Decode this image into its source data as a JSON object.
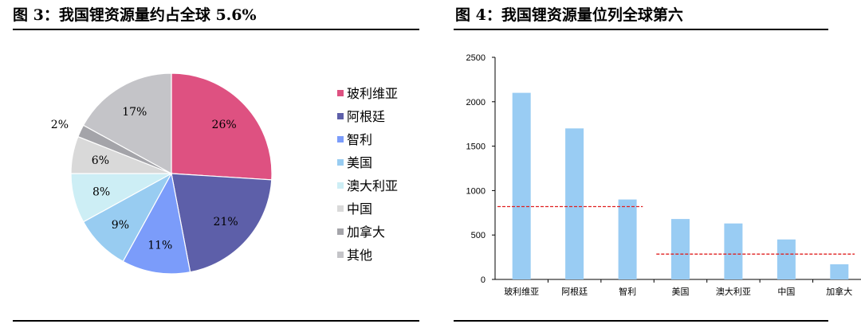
{
  "figures": [
    {
      "title": "图 3：我国锂资源量约占全球 5.6%"
    },
    {
      "title": "图 4：我国锂资源量位列全球第六"
    }
  ],
  "chart_data": [
    {
      "type": "pie",
      "title": "图 3：我国锂资源量约占全球 5.6%",
      "legend_position": "right",
      "slices": [
        {
          "label": "玻利维亚",
          "value": 26,
          "display": "26%",
          "color": "#de5181"
        },
        {
          "label": "阿根廷",
          "value": 21,
          "display": "21%",
          "color": "#5d5fa9"
        },
        {
          "label": "智利",
          "value": 11,
          "display": "11%",
          "color": "#7b9cfa"
        },
        {
          "label": "美国",
          "value": 9,
          "display": "9%",
          "color": "#98ccf1"
        },
        {
          "label": "澳大利亚",
          "value": 8,
          "display": "8%",
          "color": "#cdeef5"
        },
        {
          "label": "中国",
          "value": 6,
          "display": "6%",
          "color": "#d9d9d9"
        },
        {
          "label": "加拿大",
          "value": 2,
          "display": "2%",
          "color": "#a4a4a9"
        },
        {
          "label": "其他",
          "value": 17,
          "display": "17%",
          "color": "#c4c4c8"
        }
      ]
    },
    {
      "type": "bar",
      "title": "图 4：我国锂资源量位列全球第六",
      "categories": [
        "玻利维亚",
        "阿根廷",
        "智利",
        "美国",
        "澳大利亚",
        "中国",
        "加拿大"
      ],
      "values": [
        2100,
        1700,
        900,
        680,
        630,
        450,
        170
      ],
      "ylim": [
        0,
        2500
      ],
      "yticks": [
        "0",
        "500",
        "1000",
        "1500",
        "2000",
        "2500"
      ],
      "grid": false,
      "bar_color": "#99ccf3",
      "reference_lines": [
        {
          "y": 820,
          "from_category": 0,
          "to_category": 2,
          "color": "#e02020",
          "style": "dashed"
        },
        {
          "y": 285,
          "from_category": 3,
          "to_category": 6,
          "color": "#e02020",
          "style": "dashed"
        }
      ]
    }
  ]
}
